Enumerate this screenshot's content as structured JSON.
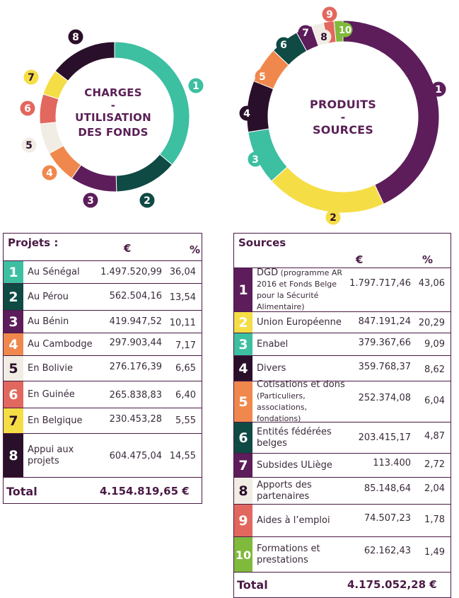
{
  "chart_data": [
    {
      "type": "pie",
      "title": "CHARGES - UTILISATION DES FONDS",
      "title_lines": [
        "CHARGES",
        "-",
        "UTILISATION",
        "DES FONDS"
      ],
      "categories": [
        "1",
        "2",
        "3",
        "4",
        "5",
        "6",
        "7",
        "8"
      ],
      "values": [
        36.04,
        13.54,
        10.11,
        7.17,
        6.65,
        6.4,
        5.55,
        14.55
      ],
      "colors": [
        "#3dbfa1",
        "#0f4a44",
        "#5c1d5a",
        "#f0884d",
        "#f1ece4",
        "#e2675e",
        "#f5dd45",
        "#2a0f2a"
      ]
    },
    {
      "type": "pie",
      "title": "PRODUITS - SOURCES",
      "title_lines": [
        "PRODUITS",
        "-",
        "SOURCES"
      ],
      "categories": [
        "1",
        "2",
        "3",
        "4",
        "5",
        "6",
        "7",
        "8",
        "9",
        "10"
      ],
      "values": [
        43.06,
        20.29,
        9.09,
        8.62,
        6.04,
        4.87,
        2.72,
        2.04,
        1.78,
        1.49
      ],
      "colors": [
        "#5c1d5a",
        "#f5dd45",
        "#3dbfa1",
        "#2a0f2a",
        "#f0884d",
        "#0f4a44",
        "#5c1d5a",
        "#f1ece4",
        "#e2675e",
        "#7fba3c"
      ]
    }
  ],
  "projets": {
    "title": "Projets :",
    "col_eur": "€",
    "col_pct": "%",
    "rows": [
      {
        "num": "1",
        "label": "Au Sénégal",
        "value": "1.497.520,99",
        "pct": "36,04",
        "color": "#3dbfa1",
        "numColor": "#ffffff"
      },
      {
        "num": "2",
        "label": "Au Pérou",
        "value": "562.504,16",
        "pct": "13,54",
        "color": "#0f4a44",
        "numColor": "#ffffff"
      },
      {
        "num": "3",
        "label": "Au Bénin",
        "value": "419.947,52",
        "pct": "10,11",
        "color": "#5c1d5a",
        "numColor": "#ffffff"
      },
      {
        "num": "4",
        "label": "Au Cambodge",
        "value": "297.903,44",
        "pct": "7,17",
        "color": "#f0884d",
        "numColor": "#ffffff"
      },
      {
        "num": "5",
        "label": "En Bolivie",
        "value": "276.176,39",
        "pct": "6,65",
        "color": "#f1ece4",
        "numColor": "#2a0f2a"
      },
      {
        "num": "6",
        "label": "En Guinée",
        "value": "265.838,83",
        "pct": "6,40",
        "color": "#e2675e",
        "numColor": "#ffffff"
      },
      {
        "num": "7",
        "label": "En Belgique",
        "value": "230.453,28",
        "pct": "5,55",
        "color": "#f5dd45",
        "numColor": "#2a0f2a"
      },
      {
        "num": "8",
        "label": "Appui aux projets",
        "value": "604.475,04",
        "pct": "14,55",
        "color": "#2a0f2a",
        "numColor": "#ffffff"
      }
    ],
    "total_label": "Total",
    "total_value": "4.154.819,65 €"
  },
  "sources": {
    "title": "Sources",
    "col_eur": "€",
    "col_pct": "%",
    "rows": [
      {
        "num": "1",
        "label": "DGD",
        "label_small": "(programme AR 2016 et Fonds Belge pour la Sécurité Alimentaire)",
        "value": "1.797.717,46",
        "pct": "43,06",
        "color": "#5c1d5a",
        "numColor": "#ffffff"
      },
      {
        "num": "2",
        "label": "Union Européenne",
        "value": "847.191,24",
        "pct": "20,29",
        "color": "#f5dd45",
        "numColor": "#ffffff"
      },
      {
        "num": "3",
        "label": "Enabel",
        "value": "379.367,66",
        "pct": "9,09",
        "color": "#3dbfa1",
        "numColor": "#ffffff"
      },
      {
        "num": "4",
        "label": "Divers",
        "value": "359.768,37",
        "pct": "8,62",
        "color": "#2a0f2a",
        "numColor": "#ffffff"
      },
      {
        "num": "5",
        "label": "Cotisations et dons",
        "label_small": "(Particuliers, associations, fondations)",
        "value": "252.374,08",
        "pct": "6,04",
        "color": "#f0884d",
        "numColor": "#ffffff"
      },
      {
        "num": "6",
        "label": "Entités fédérées belges",
        "value": "203.415,17",
        "pct": "4,87",
        "color": "#0f4a44",
        "numColor": "#ffffff"
      },
      {
        "num": "7",
        "label": "Subsides ULiège",
        "value": "113.400",
        "pct": "2,72",
        "color": "#5c1d5a",
        "numColor": "#ffffff"
      },
      {
        "num": "8",
        "label": "Apports des partenaires",
        "value": "85.148,64",
        "pct": "2,04",
        "color": "#f1ece4",
        "numColor": "#2a0f2a"
      },
      {
        "num": "9",
        "label": "Aides à l’emploi",
        "value": "74.507,23",
        "pct": "1,78",
        "color": "#e2675e",
        "numColor": "#ffffff"
      },
      {
        "num": "10",
        "label": "Formations et prestations",
        "value": "62.162,43",
        "pct": "1,49",
        "color": "#7fba3c",
        "numColor": "#ffffff"
      }
    ],
    "total_label": "Total",
    "total_value": "4.175.052,28 €"
  }
}
